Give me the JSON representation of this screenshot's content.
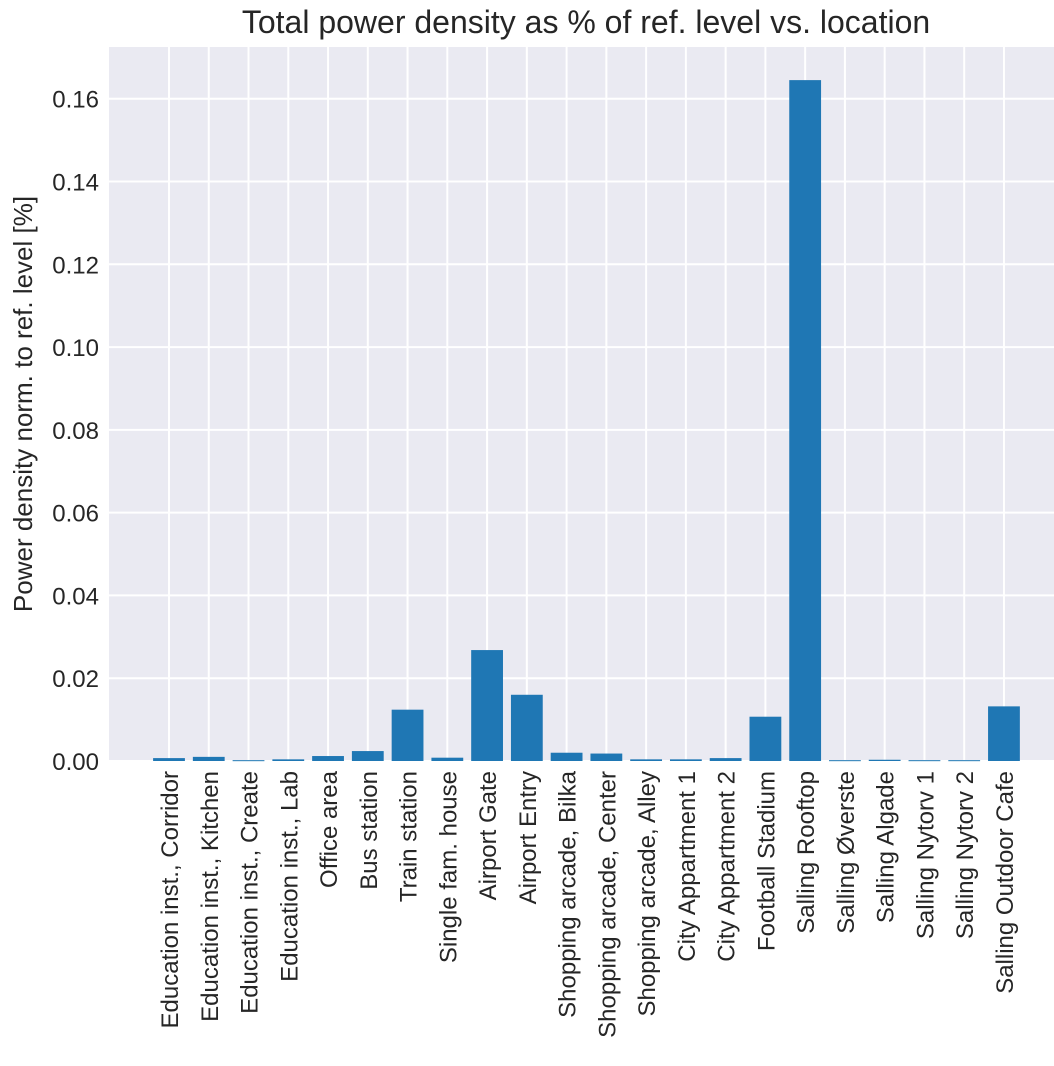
{
  "chart_data": {
    "type": "bar",
    "title": "Total power density as % of ref. level vs. location",
    "xlabel": "",
    "ylabel": "Power density norm. to ref. level [%]",
    "ylim": [
      0,
      0.1725
    ],
    "yticks": [
      "0.00",
      "0.02",
      "0.04",
      "0.06",
      "0.08",
      "0.10",
      "0.12",
      "0.14",
      "0.16"
    ],
    "grid": true,
    "bar_color": "#1f77b4",
    "background_color": "#eaeaf2",
    "grid_color": "#ffffff",
    "categories": [
      "Education inst., Corridor",
      "Education inst., Kitchen",
      "Education inst., Create",
      "Education inst., Lab",
      "Office area",
      "Bus station",
      "Train station",
      "Single fam. house",
      "Airport Gate",
      "Airport Entry",
      "Shopping arcade, Bilka",
      "Shopping arcade, Center",
      "Shopping arcade, Alley",
      "City Appartment 1",
      "City Appartment 2",
      "Football Stadium",
      "Salling Rooftop",
      "Salling Øverste",
      "Salling Algade",
      "Salling Nytorv 1",
      "Salling Nytorv 2",
      "Salling Outdoor Cafe"
    ],
    "values": [
      0.0007,
      0.001,
      0.0002,
      0.0004,
      0.0012,
      0.0024,
      0.0124,
      0.0008,
      0.0268,
      0.016,
      0.002,
      0.0018,
      0.0004,
      0.0004,
      0.0007,
      0.0107,
      0.1645,
      0.0002,
      0.0003,
      0.0002,
      0.0002,
      0.0132
    ]
  }
}
